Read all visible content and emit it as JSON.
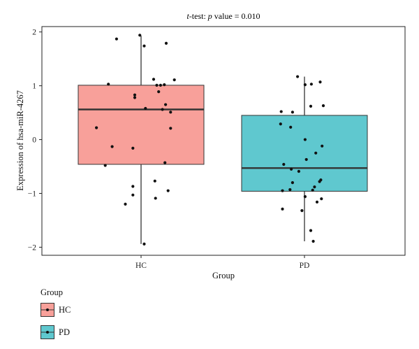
{
  "chart_data": {
    "type": "box",
    "title_prefix": "t",
    "title_rest": "-test: ",
    "title_p": "p",
    "title_suffix": " value = 0.010",
    "xlabel": "Group",
    "ylabel": "Expression of hsa-miR-4267",
    "ylim": [
      -2.15,
      2.1
    ],
    "yticks": [
      2,
      1,
      0,
      -1,
      -2
    ],
    "ytick_labels": [
      "2",
      "1",
      "0",
      "−1",
      "−2"
    ],
    "categories": [
      "HC",
      "PD"
    ],
    "grid": false,
    "legend": {
      "title": "Group",
      "position": "bottom-left",
      "entries": [
        "HC",
        "PD"
      ]
    },
    "colors": {
      "HC": "#f8a09a",
      "PD": "#5fc8cf",
      "median": "#333333",
      "point": "#111111"
    },
    "boxes": [
      {
        "group": "HC",
        "q1": -0.46,
        "median": 0.56,
        "q3": 1.01,
        "whisker_low": -1.94,
        "whisker_high": 1.93
      },
      {
        "group": "PD",
        "q1": -0.96,
        "median": -0.53,
        "q3": 0.45,
        "whisker_low": -1.89,
        "whisker_high": 1.17
      }
    ],
    "points": {
      "HC": [
        {
          "j": -0.02,
          "y": 1.94
        },
        {
          "j": -0.39,
          "y": 1.87
        },
        {
          "j": 0.05,
          "y": 1.74
        },
        {
          "j": 0.4,
          "y": 1.79
        },
        {
          "j": 0.2,
          "y": 1.12
        },
        {
          "j": 0.53,
          "y": 1.11
        },
        {
          "j": -0.52,
          "y": 1.03
        },
        {
          "j": 0.25,
          "y": 1.01
        },
        {
          "j": 0.31,
          "y": 1.01
        },
        {
          "j": 0.37,
          "y": 1.02
        },
        {
          "j": 0.28,
          "y": 0.89
        },
        {
          "j": -0.1,
          "y": 0.83
        },
        {
          "j": -0.1,
          "y": 0.78
        },
        {
          "j": 0.39,
          "y": 0.65
        },
        {
          "j": 0.07,
          "y": 0.58
        },
        {
          "j": 0.34,
          "y": 0.56
        },
        {
          "j": 0.47,
          "y": 0.51
        },
        {
          "j": -0.71,
          "y": 0.22
        },
        {
          "j": 0.47,
          "y": 0.21
        },
        {
          "j": -0.46,
          "y": -0.13
        },
        {
          "j": -0.13,
          "y": -0.16
        },
        {
          "j": 0.38,
          "y": -0.43
        },
        {
          "j": -0.57,
          "y": -0.48
        },
        {
          "j": 0.22,
          "y": -0.77
        },
        {
          "j": -0.13,
          "y": -0.87
        },
        {
          "j": 0.43,
          "y": -0.95
        },
        {
          "j": -0.13,
          "y": -1.03
        },
        {
          "j": 0.23,
          "y": -1.09
        },
        {
          "j": -0.25,
          "y": -1.2
        },
        {
          "j": 0.05,
          "y": -1.94
        }
      ],
      "PD": [
        {
          "j": -0.11,
          "y": 1.17
        },
        {
          "j": 0.25,
          "y": 1.07
        },
        {
          "j": 0.11,
          "y": 1.03
        },
        {
          "j": 0.01,
          "y": 1.02
        },
        {
          "j": 0.3,
          "y": 0.63
        },
        {
          "j": 0.1,
          "y": 0.62
        },
        {
          "j": -0.37,
          "y": 0.52
        },
        {
          "j": -0.19,
          "y": 0.51
        },
        {
          "j": -0.38,
          "y": 0.29
        },
        {
          "j": -0.22,
          "y": 0.23
        },
        {
          "j": 0.01,
          "y": 0.0
        },
        {
          "j": 0.28,
          "y": -0.12
        },
        {
          "j": 0.03,
          "y": -0.37
        },
        {
          "j": 0.18,
          "y": -0.25
        },
        {
          "j": -0.33,
          "y": -0.46
        },
        {
          "j": -0.21,
          "y": -0.55
        },
        {
          "j": -0.09,
          "y": -0.59
        },
        {
          "j": -0.19,
          "y": -0.8
        },
        {
          "j": 0.26,
          "y": -0.75
        },
        {
          "j": 0.24,
          "y": -0.78
        },
        {
          "j": 0.16,
          "y": -0.88
        },
        {
          "j": -0.35,
          "y": -0.95
        },
        {
          "j": -0.23,
          "y": -0.93
        },
        {
          "j": 0.13,
          "y": -0.94
        },
        {
          "j": 0.01,
          "y": -1.06
        },
        {
          "j": 0.27,
          "y": -1.1
        },
        {
          "j": 0.2,
          "y": -1.16
        },
        {
          "j": -0.35,
          "y": -1.29
        },
        {
          "j": -0.04,
          "y": -1.32
        },
        {
          "j": 0.1,
          "y": -1.69
        },
        {
          "j": 0.14,
          "y": -1.89
        }
      ]
    }
  }
}
